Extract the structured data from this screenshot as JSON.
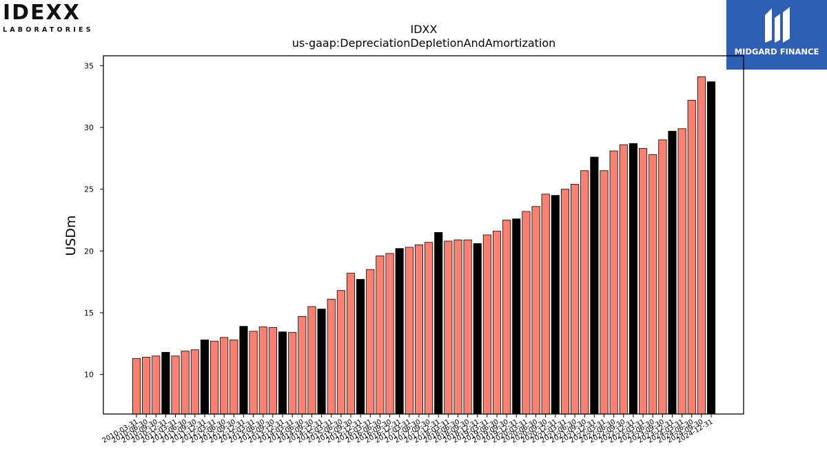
{
  "logos": {
    "left_word": "IDEXX",
    "left_sub": "LABORATORIES",
    "right_brand": "MIDGARD FINANCE",
    "right_color": "#2f5fb3"
  },
  "chart_data": {
    "type": "bar",
    "title": "IDXX",
    "subtitle": "us-gaap:DepreciationDepletionAndAmortization",
    "ylabel": "USDm",
    "xlabel": "",
    "ylim": [
      6.8,
      35.8
    ],
    "yticks": [
      10,
      15,
      20,
      25,
      30,
      35
    ],
    "colors": {
      "quarter": "#fa8072",
      "annual": "#000000"
    },
    "categories": [
      "2010-03-31",
      "2010-06-30",
      "2010-09-30",
      "2010-12-31",
      "2011-03-31",
      "2011-06-30",
      "2011-09-30",
      "2011-12-31",
      "2012-03-31",
      "2012-06-30",
      "2012-09-30",
      "2012-12-31",
      "2013-03-31",
      "2013-06-30",
      "2013-09-30",
      "2013-12-31",
      "2014-03-31",
      "2014-06-30",
      "2014-09-30",
      "2014-12-31",
      "2015-03-31",
      "2015-06-30",
      "2015-09-30",
      "2015-12-31",
      "2016-03-31",
      "2016-06-30",
      "2016-09-30",
      "2016-12-31",
      "2017-03-31",
      "2017-06-30",
      "2017-09-30",
      "2017-12-31",
      "2018-03-31",
      "2018-06-30",
      "2018-09-30",
      "2018-12-31",
      "2019-03-31",
      "2019-06-30",
      "2019-09-30",
      "2019-12-31",
      "2020-03-31",
      "2020-06-30",
      "2020-09-30",
      "2020-12-31",
      "2021-03-31",
      "2021-06-30",
      "2021-09-30",
      "2021-12-31",
      "2022-03-31",
      "2022-06-30",
      "2022-09-30",
      "2022-12-31",
      "2023-03-31",
      "2023-06-30",
      "2023-09-30",
      "2023-12-31",
      "2024-03-31",
      "2024-06-30",
      "2024-09-30",
      "2024-12-31"
    ],
    "values": [
      11.3,
      11.4,
      11.5,
      11.8,
      11.5,
      11.9,
      12.0,
      12.8,
      12.7,
      13.0,
      12.8,
      13.9,
      13.5,
      13.85,
      13.8,
      13.45,
      13.4,
      14.7,
      15.5,
      15.3,
      16.1,
      16.8,
      18.2,
      17.7,
      18.5,
      19.6,
      19.8,
      20.2,
      20.3,
      20.5,
      20.7,
      21.5,
      20.8,
      20.9,
      20.9,
      20.6,
      21.3,
      21.6,
      22.5,
      22.6,
      23.2,
      23.6,
      24.6,
      24.5,
      25.0,
      25.4,
      26.5,
      27.6,
      26.5,
      28.1,
      28.6,
      28.7,
      28.3,
      27.8,
      29.0,
      29.7,
      29.9,
      32.2,
      34.1,
      33.7
    ],
    "annual": [
      false,
      false,
      false,
      true,
      false,
      false,
      false,
      true,
      false,
      false,
      false,
      true,
      false,
      false,
      false,
      true,
      false,
      false,
      false,
      true,
      false,
      false,
      false,
      true,
      false,
      false,
      false,
      true,
      false,
      false,
      false,
      true,
      false,
      false,
      false,
      true,
      false,
      false,
      false,
      true,
      false,
      false,
      false,
      true,
      false,
      false,
      false,
      true,
      false,
      false,
      false,
      true,
      false,
      false,
      false,
      true,
      false,
      false,
      false,
      true
    ]
  }
}
